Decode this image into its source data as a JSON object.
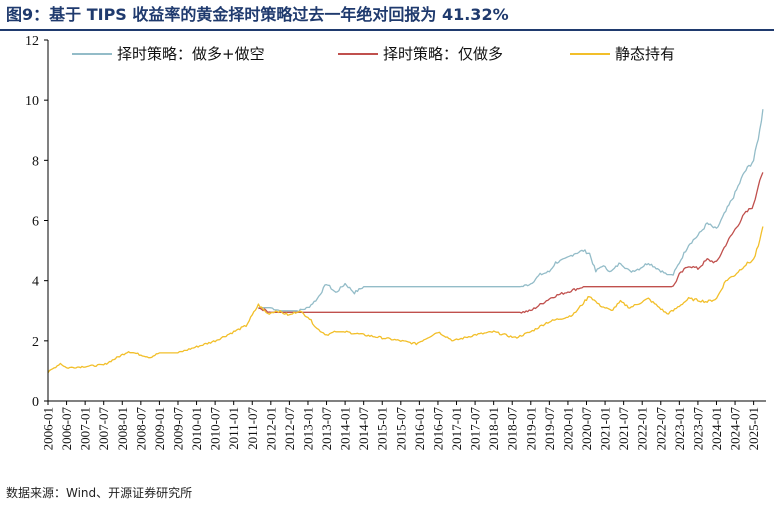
{
  "title": "图9：基于 TIPS 收益率的黄金择时策略过去一年绝对回报为 41.32%",
  "source": "数据来源：Wind、开源证券研究所",
  "colors": {
    "title": "#1f3a6e",
    "long_short": "#93bcc8",
    "long_only": "#c0504d",
    "buy_hold": "#f2bf2a"
  },
  "chart_data": {
    "type": "line",
    "y_ticks": [
      "0",
      "2",
      "4",
      "6",
      "8",
      "10",
      "12"
    ],
    "ylim": [
      0,
      12
    ],
    "x_range": [
      "2006-01",
      "2025-05"
    ],
    "x_tick_labels": [
      "2006-01",
      "2006-07",
      "2007-01",
      "2007-07",
      "2008-01",
      "2008-07",
      "2009-01",
      "2009-07",
      "2010-01",
      "2010-07",
      "2011-01",
      "2011-07",
      "2012-01",
      "2012-07",
      "2013-01",
      "2013-07",
      "2014-01",
      "2014-07",
      "2015-01",
      "2015-07",
      "2016-01",
      "2016-07",
      "2017-01",
      "2017-07",
      "2018-01",
      "2018-07",
      "2019-01",
      "2019-07",
      "2020-01",
      "2020-07",
      "2021-01",
      "2021-07",
      "2022-01",
      "2022-07",
      "2023-01",
      "2023-07",
      "2024-01",
      "2024-07",
      "2025-01"
    ],
    "legend": {
      "placement": "top",
      "items": [
        "择时策略：做多+做空",
        "择时策略：仅做多",
        "静态持有"
      ]
    },
    "series": [
      {
        "name": "择时策略：做多+做空",
        "color": "#93bcc8",
        "x": [
          "2011-09",
          "2012-01",
          "2012-04",
          "2012-07",
          "2012-10",
          "2013-01",
          "2013-04",
          "2013-07",
          "2013-10",
          "2014-01",
          "2014-04",
          "2014-07",
          "2015-01",
          "2016-01",
          "2017-01",
          "2018-01",
          "2018-10",
          "2019-01",
          "2019-04",
          "2019-07",
          "2019-09",
          "2019-12",
          "2020-03",
          "2020-06",
          "2020-08",
          "2020-10",
          "2020-12",
          "2021-03",
          "2021-06",
          "2021-09",
          "2021-12",
          "2022-03",
          "2022-06",
          "2022-09",
          "2022-11",
          "2023-01",
          "2023-04",
          "2023-07",
          "2023-10",
          "2024-01",
          "2024-04",
          "2024-07",
          "2024-10",
          "2025-01",
          "2025-03",
          "2025-04"
        ],
        "values": [
          3.1,
          3.1,
          3.0,
          3.0,
          3.0,
          3.1,
          3.4,
          3.9,
          3.6,
          3.9,
          3.6,
          3.8,
          3.8,
          3.8,
          3.8,
          3.8,
          3.8,
          3.9,
          4.2,
          4.3,
          4.6,
          4.7,
          4.9,
          5.0,
          4.9,
          4.3,
          4.5,
          4.3,
          4.6,
          4.3,
          4.4,
          4.6,
          4.4,
          4.2,
          4.2,
          4.6,
          5.2,
          5.5,
          5.9,
          5.7,
          6.3,
          6.9,
          7.6,
          8.0,
          9.0,
          9.7
        ]
      },
      {
        "name": "择时策略：仅做多",
        "color": "#c0504d",
        "x": [
          "2011-09",
          "2012-01",
          "2012-07",
          "2013-01",
          "2014-01",
          "2015-01",
          "2016-01",
          "2017-01",
          "2018-01",
          "2018-10",
          "2019-01",
          "2019-04",
          "2019-07",
          "2019-09",
          "2019-12",
          "2020-03",
          "2020-06",
          "2021-01",
          "2022-01",
          "2022-09",
          "2022-11",
          "2023-01",
          "2023-04",
          "2023-07",
          "2023-10",
          "2024-01",
          "2024-04",
          "2024-07",
          "2024-10",
          "2025-01",
          "2025-03",
          "2025-04"
        ],
        "values": [
          3.1,
          2.95,
          2.95,
          2.95,
          2.95,
          2.95,
          2.95,
          2.95,
          2.95,
          2.95,
          3.0,
          3.2,
          3.4,
          3.5,
          3.6,
          3.7,
          3.8,
          3.8,
          3.8,
          3.8,
          3.8,
          4.2,
          4.5,
          4.4,
          4.7,
          4.6,
          5.2,
          5.7,
          6.2,
          6.5,
          7.4,
          7.6
        ]
      },
      {
        "name": "静态持有",
        "color": "#f2bf2a",
        "x": [
          "2006-01",
          "2006-05",
          "2006-07",
          "2007-01",
          "2007-07",
          "2008-03",
          "2008-10",
          "2009-01",
          "2009-07",
          "2010-01",
          "2010-07",
          "2011-01",
          "2011-05",
          "2011-09",
          "2011-12",
          "2012-03",
          "2012-07",
          "2012-10",
          "2013-01",
          "2013-04",
          "2013-07",
          "2013-10",
          "2014-01",
          "2014-07",
          "2015-01",
          "2015-07",
          "2015-12",
          "2016-07",
          "2016-12",
          "2017-07",
          "2018-01",
          "2018-08",
          "2019-01",
          "2019-06",
          "2019-09",
          "2020-01",
          "2020-03",
          "2020-08",
          "2020-11",
          "2021-03",
          "2021-06",
          "2021-09",
          "2022-03",
          "2022-09",
          "2022-11",
          "2023-04",
          "2023-10",
          "2024-01",
          "2024-04",
          "2024-07",
          "2024-10",
          "2025-01",
          "2025-03",
          "2025-04"
        ],
        "values": [
          0.95,
          1.25,
          1.1,
          1.15,
          1.2,
          1.65,
          1.45,
          1.6,
          1.6,
          1.8,
          2.0,
          2.3,
          2.5,
          3.2,
          2.9,
          3.0,
          2.85,
          3.0,
          2.8,
          2.4,
          2.2,
          2.3,
          2.3,
          2.2,
          2.1,
          2.0,
          1.9,
          2.3,
          2.0,
          2.2,
          2.3,
          2.1,
          2.3,
          2.6,
          2.7,
          2.8,
          2.9,
          3.5,
          3.2,
          3.0,
          3.3,
          3.1,
          3.4,
          2.9,
          3.0,
          3.4,
          3.3,
          3.4,
          4.0,
          4.2,
          4.5,
          4.7,
          5.3,
          5.8
        ]
      }
    ]
  }
}
